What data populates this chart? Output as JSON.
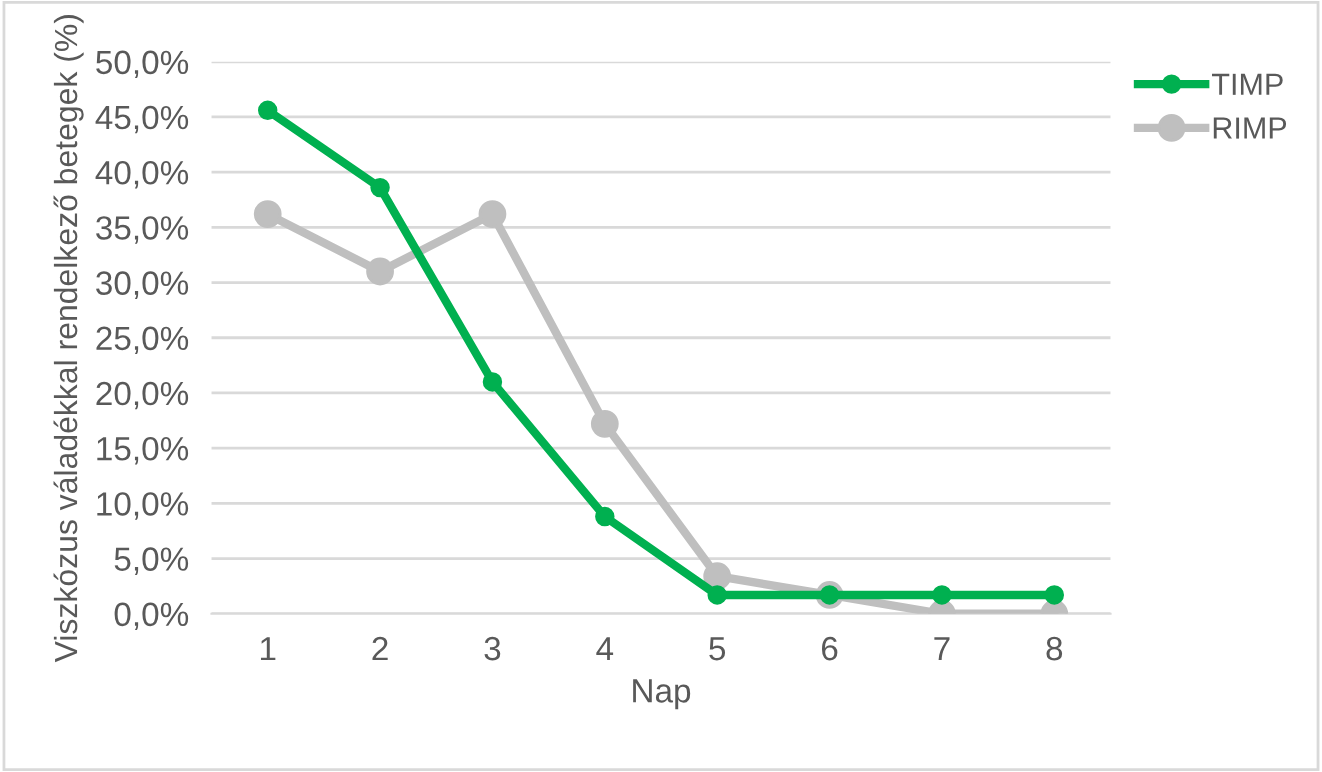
{
  "chart_data": {
    "type": "line",
    "xlabel": "Nap",
    "ylabel": "Viszkózus váladékkal rendelkező betegek (%)",
    "categories": [
      "1",
      "2",
      "3",
      "4",
      "5",
      "6",
      "7",
      "8"
    ],
    "series": [
      {
        "name": "TIMP",
        "color": "#00b050",
        "values": [
          45.6,
          38.6,
          21.0,
          8.8,
          1.7,
          1.7,
          1.7,
          1.7
        ]
      },
      {
        "name": "RIMP",
        "color": "#bfbfbf",
        "values": [
          36.2,
          31.0,
          36.2,
          17.2,
          3.4,
          1.7,
          0,
          0
        ]
      }
    ],
    "ylim": [
      0,
      50
    ],
    "yticks": [
      {
        "value": 0,
        "label": "0,0%"
      },
      {
        "value": 5,
        "label": "5,0%"
      },
      {
        "value": 10,
        "label": "10,0%"
      },
      {
        "value": 15,
        "label": "15,0%"
      },
      {
        "value": 20,
        "label": "20,0%"
      },
      {
        "value": 25,
        "label": "25,0%"
      },
      {
        "value": 30,
        "label": "30,0%"
      },
      {
        "value": 35,
        "label": "35,0%"
      },
      {
        "value": 40,
        "label": "40,0%"
      },
      {
        "value": 45,
        "label": "45,0%"
      },
      {
        "value": 50,
        "label": "50,0%"
      }
    ],
    "grid": "y",
    "legend": "top right",
    "marker": "circle",
    "line_style": "solid"
  }
}
